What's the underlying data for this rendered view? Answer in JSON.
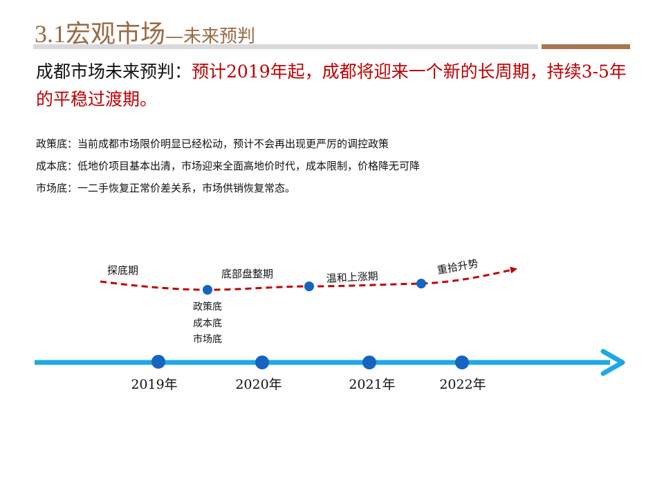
{
  "header": {
    "title_main": "3.1宏观市场",
    "title_sub": "—未来预判"
  },
  "headline": {
    "lead": "成都市场未来预判：",
    "highlight": "预计2019年起，成都将迎来一个新的长周期，持续3-5年的平稳过渡期。"
  },
  "points": [
    "政策底：当前成都市场限价明显已经松动，预计不会再出现更严厉的调控政策",
    "成本底：低地价项目基本出清，市场迎来全面高地价时代，成本限制，价格降无可降",
    "市场底：一二手恢复正常价差关系，市场供销恢复常态。"
  ],
  "timeline": {
    "years": [
      "2019年",
      "2020年",
      "2021年",
      "2022年"
    ],
    "phases": [
      "探底期",
      "底部盘整期",
      "温和上涨期",
      "重拾升势"
    ],
    "bottom_notes": [
      "政策底",
      "成本底",
      "市场底"
    ]
  },
  "colors": {
    "accent_brown": "#9a6a43",
    "headline_red": "#c00000",
    "axis_blue": "#1ea8e8",
    "node_blue": "#1565c0",
    "trend_red": "#c00000"
  }
}
